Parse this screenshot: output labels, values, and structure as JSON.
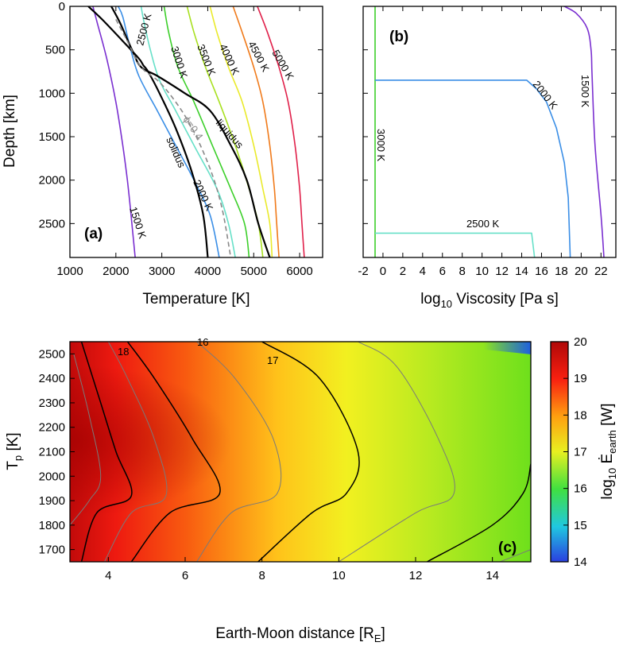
{
  "colors": {
    "1500": "#7a2fd0",
    "2000": "#3a8ee6",
    "2500": "#66e0c8",
    "3000": "#3ccf2a",
    "3500": "#a8e020",
    "4000": "#eaea2a",
    "4500": "#f07a1a",
    "5000": "#e0204a",
    "curve": "#000000",
    "dashed": "#888888"
  },
  "chart_data": [
    {
      "id": "a",
      "type": "line",
      "panel_label": "(a)",
      "xlabel": "Temperature [K]",
      "ylabel": "Depth [km]",
      "xlim": [
        1000,
        6500
      ],
      "ylim": [
        0,
        2890
      ],
      "y_inverted": true,
      "xticks": [
        1000,
        2000,
        3000,
        4000,
        5000,
        6000
      ],
      "yticks": [
        0,
        500,
        1000,
        1500,
        2000,
        2500
      ],
      "annotations": [
        "liquidus",
        "solidus",
        "ϕ=0.4"
      ],
      "series": [
        {
          "name": "1500 K",
          "color_key": "1500",
          "points": [
            [
              1500,
              0
            ],
            [
              1600,
              200
            ],
            [
              1800,
              600
            ],
            [
              2000,
              1100
            ],
            [
              2150,
              1600
            ],
            [
              2250,
              2000
            ],
            [
              2330,
              2400
            ],
            [
              2420,
              2890
            ]
          ]
        },
        {
          "name": "2000 K",
          "color_key": "2000",
          "points": [
            [
              2050,
              0
            ],
            [
              2150,
              120
            ],
            [
              2300,
              450
            ],
            [
              2500,
              800
            ],
            [
              2900,
              1200
            ],
            [
              3300,
              1600
            ],
            [
              3700,
              2000
            ],
            [
              4050,
              2400
            ],
            [
              4250,
              2890
            ]
          ]
        },
        {
          "name": "2500 K",
          "color_key": "2500",
          "points": [
            [
              2550,
              0
            ],
            [
              2600,
              150
            ],
            [
              2750,
              500
            ],
            [
              2950,
              850
            ],
            [
              3300,
              1200
            ],
            [
              3750,
              1650
            ],
            [
              4200,
              2100
            ],
            [
              4450,
              2500
            ],
            [
              4600,
              2890
            ]
          ]
        },
        {
          "name": "3000 K",
          "color_key": "3000",
          "points": [
            [
              3050,
              0
            ],
            [
              3150,
              300
            ],
            [
              3350,
              700
            ],
            [
              3700,
              1100
            ],
            [
              4100,
              1600
            ],
            [
              4500,
              2100
            ],
            [
              4800,
              2500
            ],
            [
              4900,
              2890
            ]
          ]
        },
        {
          "name": "3500 K",
          "color_key": "3500",
          "points": [
            [
              3550,
              0
            ],
            [
              3700,
              300
            ],
            [
              3950,
              700
            ],
            [
              4250,
              1100
            ],
            [
              4600,
              1600
            ],
            [
              4900,
              2100
            ],
            [
              5100,
              2500
            ],
            [
              5200,
              2890
            ]
          ]
        },
        {
          "name": "4000 K",
          "color_key": "4000",
          "points": [
            [
              4050,
              0
            ],
            [
              4200,
              300
            ],
            [
              4450,
              700
            ],
            [
              4750,
              1100
            ],
            [
              5000,
              1600
            ],
            [
              5200,
              2100
            ],
            [
              5350,
              2500
            ],
            [
              5400,
              2890
            ]
          ]
        },
        {
          "name": "4500 K",
          "color_key": "4500",
          "points": [
            [
              4550,
              0
            ],
            [
              4750,
              300
            ],
            [
              5000,
              700
            ],
            [
              5200,
              1100
            ],
            [
              5350,
              1600
            ],
            [
              5450,
              2100
            ],
            [
              5500,
              2500
            ],
            [
              5550,
              2890
            ]
          ]
        },
        {
          "name": "5000 K",
          "color_key": "5000",
          "points": [
            [
              5080,
              0
            ],
            [
              5300,
              300
            ],
            [
              5550,
              700
            ],
            [
              5750,
              1100
            ],
            [
              5900,
              1600
            ],
            [
              6000,
              2100
            ],
            [
              6050,
              2500
            ],
            [
              6100,
              2890
            ]
          ]
        },
        {
          "name": "liquidus",
          "color_key": "curve",
          "points": [
            [
              1900,
              0
            ],
            [
              2100,
              200
            ],
            [
              2350,
              500
            ],
            [
              2550,
              700
            ],
            [
              2900,
              800
            ],
            [
              3500,
              1000
            ],
            [
              4050,
              1200
            ],
            [
              4500,
              1600
            ],
            [
              4850,
              2000
            ],
            [
              5100,
              2500
            ],
            [
              5350,
              2890
            ]
          ]
        },
        {
          "name": "solidus",
          "color_key": "curve",
          "points": [
            [
              1400,
              0
            ],
            [
              1700,
              150
            ],
            [
              2150,
              400
            ],
            [
              2500,
              600
            ],
            [
              2600,
              680
            ],
            [
              2700,
              750
            ],
            [
              2950,
              1000
            ],
            [
              3300,
              1400
            ],
            [
              3650,
              1900
            ],
            [
              3900,
              2400
            ],
            [
              4000,
              2890
            ]
          ]
        },
        {
          "name": "phi=0.4",
          "color_key": "dashed",
          "points": [
            [
              2000,
              150
            ],
            [
              2250,
              400
            ],
            [
              2550,
              700
            ],
            [
              3000,
              900
            ],
            [
              3550,
              1300
            ],
            [
              4000,
              1800
            ],
            [
              4300,
              2300
            ],
            [
              4500,
              2890
            ]
          ]
        }
      ],
      "curve_labels": [
        "1500 K",
        "2000 K",
        "2500 K",
        "3000 K",
        "3500 K",
        "4000 K",
        "4500 K",
        "5000 K"
      ]
    },
    {
      "id": "b",
      "type": "line",
      "panel_label": "(b)",
      "xlabel_prefix": "log",
      "xlabel_sub": "10",
      "xlabel_rest": " Viscosity [Pa s]",
      "xlim": [
        -2,
        23.5
      ],
      "ylim": [
        0,
        2890
      ],
      "y_inverted": true,
      "xticks": [
        -2,
        0,
        2,
        4,
        6,
        8,
        10,
        12,
        14,
        16,
        18,
        20,
        22
      ],
      "series": [
        {
          "name": "3000 K",
          "color_key": "3000",
          "points": [
            [
              -0.8,
              0
            ],
            [
              -0.8,
              2890
            ]
          ]
        },
        {
          "name": "2000 K",
          "color_key": "2000",
          "points": [
            [
              -0.8,
              850
            ],
            [
              14.5,
              850
            ],
            [
              15.5,
              950
            ],
            [
              16.5,
              1100
            ],
            [
              17.5,
              1400
            ],
            [
              18.3,
              1800
            ],
            [
              18.7,
              2200
            ],
            [
              18.9,
              2890
            ]
          ]
        },
        {
          "name": "2500 K",
          "color_key": "2500",
          "points": [
            [
              -0.8,
              2610
            ],
            [
              15.0,
              2610
            ],
            [
              15.3,
              2890
            ]
          ]
        },
        {
          "name": "1500 K",
          "color_key": "1500",
          "points": [
            [
              18.3,
              0
            ],
            [
              19.5,
              80
            ],
            [
              20.6,
              250
            ],
            [
              21.0,
              500
            ],
            [
              21.1,
              800
            ],
            [
              21.4,
              1600
            ],
            [
              22.0,
              2400
            ],
            [
              22.3,
              2890
            ]
          ]
        }
      ],
      "curve_labels": [
        "3000 K",
        "2000 K",
        "2500 K",
        "1500 K"
      ]
    },
    {
      "id": "c",
      "type": "heatmap",
      "panel_label": "(c)",
      "xlabel": "Earth-Moon distance [R",
      "xlabel_sub": "E",
      "xlabel_end": "]",
      "ylabel_main": "T",
      "ylabel_sub": "p",
      "ylabel_rest": " [K]",
      "xlim": [
        3,
        15
      ],
      "ylim": [
        1650,
        2550
      ],
      "xticks": [
        4,
        6,
        8,
        10,
        12,
        14
      ],
      "yticks": [
        1700,
        1800,
        1900,
        2000,
        2100,
        2200,
        2300,
        2400,
        2500
      ],
      "colorbar": {
        "label_prefix": "log",
        "label_sub": "10",
        "label_main": " Ė",
        "label_sub2": "earth",
        "label_unit": " [W]",
        "range": [
          14,
          20
        ],
        "ticks": [
          14,
          15,
          16,
          17,
          18,
          19,
          20
        ]
      },
      "contour_labels": [
        "18",
        "17",
        "16"
      ],
      "contours_major": [
        {
          "level": 19,
          "points": [
            [
              3.3,
              1650
            ],
            [
              3.7,
              1850
            ],
            [
              4.6,
              1920
            ],
            [
              4.2,
              2100
            ],
            [
              3.8,
              2300
            ],
            [
              3.3,
              2550
            ]
          ]
        },
        {
          "level": 18,
          "points": [
            [
              4.6,
              1650
            ],
            [
              5.6,
              1850
            ],
            [
              6.9,
              1930
            ],
            [
              6.2,
              2150
            ],
            [
              5.2,
              2400
            ],
            [
              4.5,
              2550
            ]
          ]
        },
        {
          "level": 17,
          "points": [
            [
              7.9,
              1650
            ],
            [
              9.3,
              1850
            ],
            [
              10.2,
              1930
            ],
            [
              10.5,
              2100
            ],
            [
              9.5,
              2400
            ],
            [
              8.0,
              2550
            ]
          ]
        },
        {
          "level": 16,
          "points": [
            [
              12.3,
              1650
            ],
            [
              14.0,
              1800
            ],
            [
              14.8,
              1930
            ],
            [
              15.0,
              2050
            ]
          ]
        }
      ],
      "contours_minor": [
        {
          "level": 19.5,
          "points": [
            [
              3.0,
              1800
            ],
            [
              3.5,
              1900
            ],
            [
              3.8,
              2000
            ],
            [
              3.5,
              2250
            ],
            [
              3.1,
              2500
            ]
          ]
        },
        {
          "level": 18.5,
          "points": [
            [
              3.9,
              1650
            ],
            [
              4.6,
              1850
            ],
            [
              5.5,
              1920
            ],
            [
              5.2,
              2150
            ],
            [
              4.5,
              2400
            ],
            [
              4.0,
              2550
            ]
          ]
        },
        {
          "level": 17.5,
          "points": [
            [
              6.3,
              1650
            ],
            [
              7.2,
              1850
            ],
            [
              8.4,
              1930
            ],
            [
              8.3,
              2150
            ],
            [
              7.3,
              2400
            ],
            [
              6.3,
              2550
            ]
          ]
        },
        {
          "level": 16.5,
          "points": [
            [
              10.0,
              1650
            ],
            [
              12.0,
              1850
            ],
            [
              13.0,
              1930
            ],
            [
              12.6,
              2150
            ],
            [
              11.5,
              2450
            ],
            [
              10.5,
              2550
            ]
          ]
        },
        {
          "level": 15.5,
          "points": [
            [
              14.2,
              1650
            ],
            [
              15.0,
              1700
            ]
          ]
        }
      ]
    }
  ]
}
